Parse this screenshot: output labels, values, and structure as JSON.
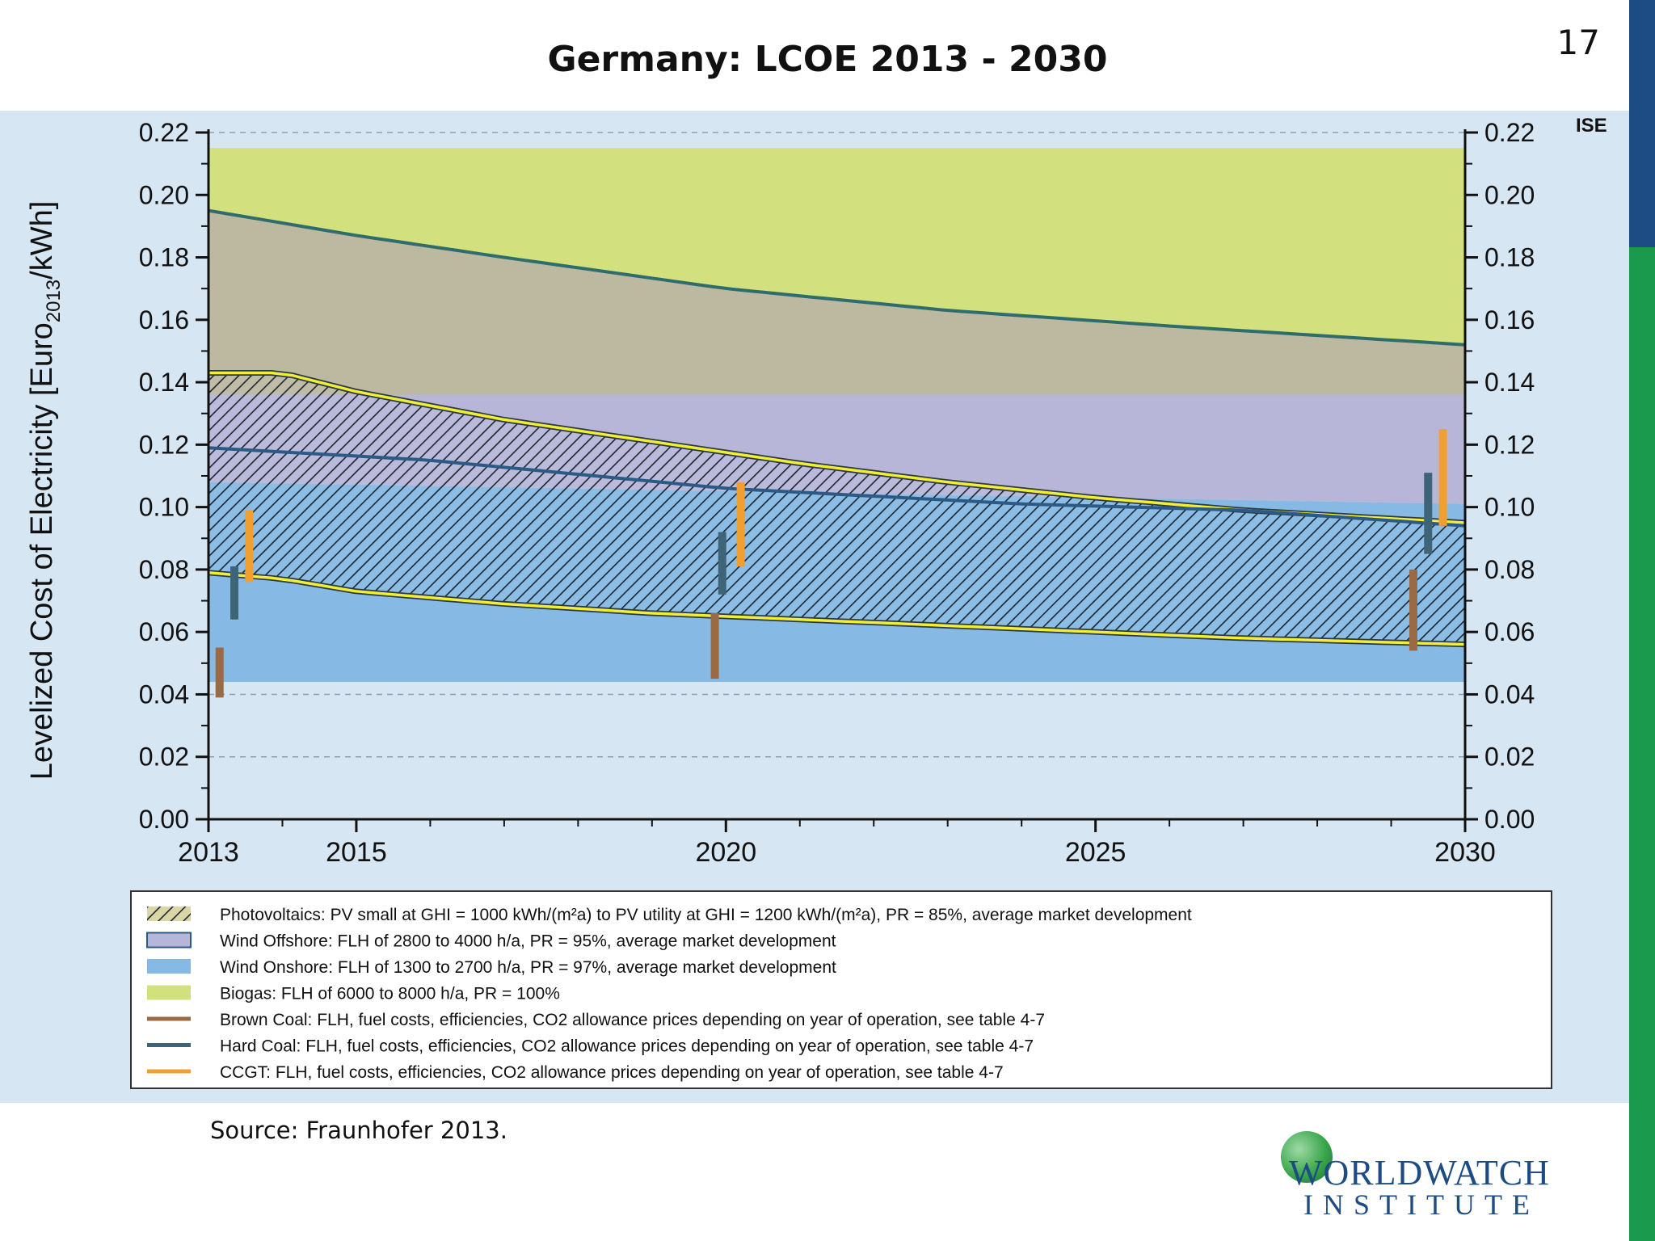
{
  "slide": {
    "title": "Germany: LCOE 2013 - 2030",
    "page_number": "17",
    "source": "Source: Fraunhofer 2013.",
    "logo_text_main": "WORLDWATCH",
    "logo_text_sub": "INSTITUTE",
    "accent_colors": {
      "blue": "#1d4b84",
      "green": "#1a9a4c"
    }
  },
  "chart_data": {
    "type": "area",
    "title": "",
    "watermark": "ISE",
    "xlabel": "",
    "ylabel_main": "Levelized Cost of Electricity [Euro",
    "ylabel_sub": "2013",
    "ylabel_end": "/kWh]",
    "xlim": [
      2013,
      2030
    ],
    "ylim": [
      0,
      0.22
    ],
    "x_tick_labels": [
      "2013",
      "2015",
      "2020",
      "2025",
      "2030"
    ],
    "y_tick_labels": [
      "0.00",
      "0.02",
      "0.04",
      "0.06",
      "0.08",
      "0.10",
      "0.12",
      "0.14",
      "0.16",
      "0.18",
      "0.20",
      "0.22"
    ],
    "grid": "horizontal dashed",
    "secondary_y_axis": true,
    "bands": [
      {
        "key": "biogas",
        "color": "#d2e07e",
        "x": [
          2013,
          2030
        ],
        "low": [
          0.136,
          0.136
        ],
        "high": [
          0.215,
          0.215
        ]
      },
      {
        "key": "wind_offshore",
        "color": "#b8b6d8",
        "x": [
          2013,
          2030
        ],
        "low": [
          0.108,
          0.101
        ],
        "high": [
          0.136,
          0.136
        ]
      },
      {
        "key": "wind_onshore",
        "color": "#86b9e3",
        "x": [
          2013,
          2030
        ],
        "low": [
          0.044,
          0.044
        ],
        "high": [
          0.108,
          0.101
        ]
      },
      {
        "key": "overlap_biogas_offshore",
        "color": "#bdb8a0",
        "x": [
          2013,
          2015,
          2020,
          2025,
          2030
        ],
        "low": [
          0.136,
          0.136,
          0.136,
          0.136,
          0.136
        ],
        "high": [
          0.195,
          0.187,
          0.17,
          0.159,
          0.152
        ]
      }
    ],
    "hatched_band": {
      "key": "photovoltaics",
      "x": [
        2013,
        2014,
        2015,
        2017,
        2019,
        2021,
        2023,
        2025,
        2027,
        2030
      ],
      "high": [
        0.143,
        0.143,
        0.137,
        0.128,
        0.121,
        0.114,
        0.108,
        0.103,
        0.099,
        0.095
      ],
      "low": [
        0.079,
        0.077,
        0.073,
        0.069,
        0.066,
        0.064,
        0.062,
        0.06,
        0.058,
        0.056
      ]
    },
    "lines": [
      {
        "key": "upper_curve",
        "color": "#2e6d6b",
        "x": [
          2013,
          2015,
          2017,
          2020,
          2023,
          2026,
          2030
        ],
        "y": [
          0.195,
          0.187,
          0.18,
          0.17,
          0.163,
          0.158,
          0.152
        ]
      },
      {
        "key": "offshore_curve",
        "color": "#2c5a86",
        "x": [
          2013,
          2016,
          2020,
          2024,
          2027,
          2030
        ],
        "y": [
          0.119,
          0.115,
          0.106,
          0.101,
          0.099,
          0.094
        ]
      }
    ],
    "range_bars": [
      {
        "key": "brown_coal",
        "color": "#9a6a44",
        "x": 2013.15,
        "low": 0.039,
        "high": 0.055
      },
      {
        "key": "hard_coal",
        "color": "#3e6577",
        "x": 2013.35,
        "low": 0.064,
        "high": 0.081
      },
      {
        "key": "ccgt",
        "color": "#f0a030",
        "x": 2013.55,
        "low": 0.076,
        "high": 0.099
      },
      {
        "key": "brown_coal",
        "color": "#9a6a44",
        "x": 2019.85,
        "low": 0.045,
        "high": 0.066
      },
      {
        "key": "hard_coal",
        "color": "#3e6577",
        "x": 2019.95,
        "low": 0.072,
        "high": 0.092
      },
      {
        "key": "ccgt",
        "color": "#f0a030",
        "x": 2020.2,
        "low": 0.081,
        "high": 0.108
      },
      {
        "key": "brown_coal",
        "color": "#9a6a44",
        "x": 2029.3,
        "low": 0.054,
        "high": 0.08
      },
      {
        "key": "hard_coal",
        "color": "#3e6577",
        "x": 2029.5,
        "low": 0.085,
        "high": 0.111
      },
      {
        "key": "ccgt",
        "color": "#f0a030",
        "x": 2029.7,
        "low": 0.094,
        "high": 0.125
      }
    ],
    "legend_position": "bottom",
    "legend": [
      {
        "key": "photovoltaics",
        "swatch": "hatch",
        "color": "#d8d4a0",
        "label": "Photovoltaics: PV small at GHI = 1000 kWh/(m²a) to PV utility at GHI = 1200 kWh/(m²a), PR = 85%, average market development"
      },
      {
        "key": "wind_offshore",
        "swatch": "box",
        "color": "#b8b6d8",
        "label": "Wind Offshore: FLH of 2800 to 4000 h/a, PR = 95%, average market development"
      },
      {
        "key": "wind_onshore",
        "swatch": "box",
        "color": "#86b9e3",
        "label": "Wind Onshore: FLH of 1300 to 2700 h/a, PR = 97%, average market development"
      },
      {
        "key": "biogas",
        "swatch": "box",
        "color": "#d2e07e",
        "label": "Biogas: FLH of 6000 to 8000 h/a, PR = 100%"
      },
      {
        "key": "brown_coal",
        "swatch": "line",
        "color": "#9a6a44",
        "label": "Brown Coal: FLH, fuel costs, efficiencies, CO2 allowance prices depending on year of operation, see table 4-7"
      },
      {
        "key": "hard_coal",
        "swatch": "line",
        "color": "#3e6577",
        "label": "Hard Coal: FLH, fuel costs, efficiencies, CO2 allowance prices depending on year of operation, see table 4-7"
      },
      {
        "key": "ccgt",
        "swatch": "line",
        "color": "#f0a030",
        "label": "CCGT: FLH, fuel costs, efficiencies, CO2 allowance prices depending on year of operation, see table 4-7"
      }
    ]
  }
}
